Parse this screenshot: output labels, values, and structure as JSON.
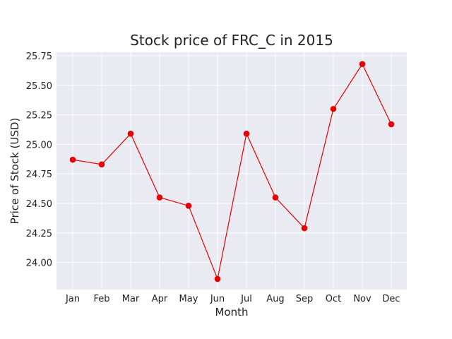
{
  "chart_data": {
    "type": "line",
    "title": "Stock price of FRC_C in 2015",
    "xlabel": "Month",
    "ylabel": "Price of Stock (USD)",
    "categories": [
      "Jan",
      "Feb",
      "Mar",
      "Apr",
      "May",
      "Jun",
      "Jul",
      "Aug",
      "Sep",
      "Oct",
      "Nov",
      "Dec"
    ],
    "series": [
      {
        "values": [
          24.87,
          24.83,
          25.09,
          24.55,
          24.48,
          23.86,
          25.09,
          24.55,
          24.29,
          25.3,
          25.68,
          25.17
        ],
        "color": "#e60000"
      }
    ],
    "ylim": [
      23.77,
      25.78
    ],
    "yticks": [
      "24.00",
      "24.25",
      "24.50",
      "24.75",
      "25.00",
      "25.25",
      "25.50",
      "25.75"
    ],
    "grid": true,
    "colors": {
      "plot_background": "#eaeaf2",
      "grid": "#ffffff",
      "line": "#e60000",
      "marker": "#e60000"
    }
  }
}
